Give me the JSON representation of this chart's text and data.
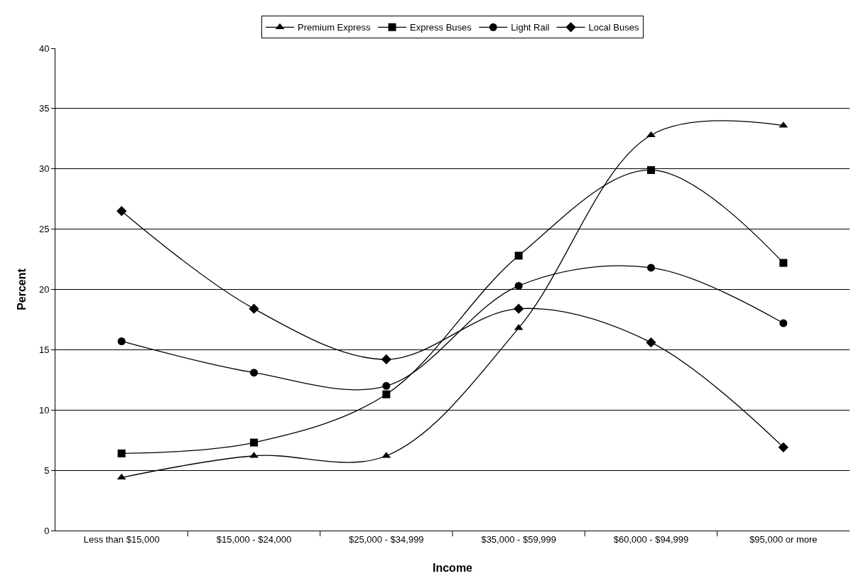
{
  "chart_data": {
    "type": "line",
    "xlabel": "Income",
    "ylabel": "Percent",
    "categories": [
      "Less than $15,000",
      "$15,000 - $24,000",
      "$25,000 - $34,999",
      "$35,000 - $59,999",
      "$60,000 - $94,999",
      "$95,000 or more"
    ],
    "series": [
      {
        "name": "Premium Express",
        "color": "#000000",
        "marker": "triangle",
        "values": [
          4.4,
          6.2,
          6.2,
          16.8,
          32.8,
          33.6
        ]
      },
      {
        "name": "Express Buses",
        "color": "#000000",
        "marker": "square",
        "values": [
          6.4,
          7.3,
          11.3,
          22.8,
          29.9,
          22.2
        ]
      },
      {
        "name": "Light Rail",
        "color": "#000000",
        "marker": "circle",
        "values": [
          15.7,
          13.1,
          12.0,
          20.3,
          21.8,
          17.2
        ]
      },
      {
        "name": "Local Buses",
        "color": "#000000",
        "marker": "diamond",
        "values": [
          26.5,
          18.4,
          14.2,
          18.4,
          15.6,
          6.9
        ]
      }
    ],
    "ylim": [
      0,
      40
    ],
    "yticks": [
      0,
      5,
      10,
      15,
      20,
      25,
      30,
      35,
      40
    ],
    "grid": "y",
    "legend": "top",
    "line_style": "solid"
  }
}
